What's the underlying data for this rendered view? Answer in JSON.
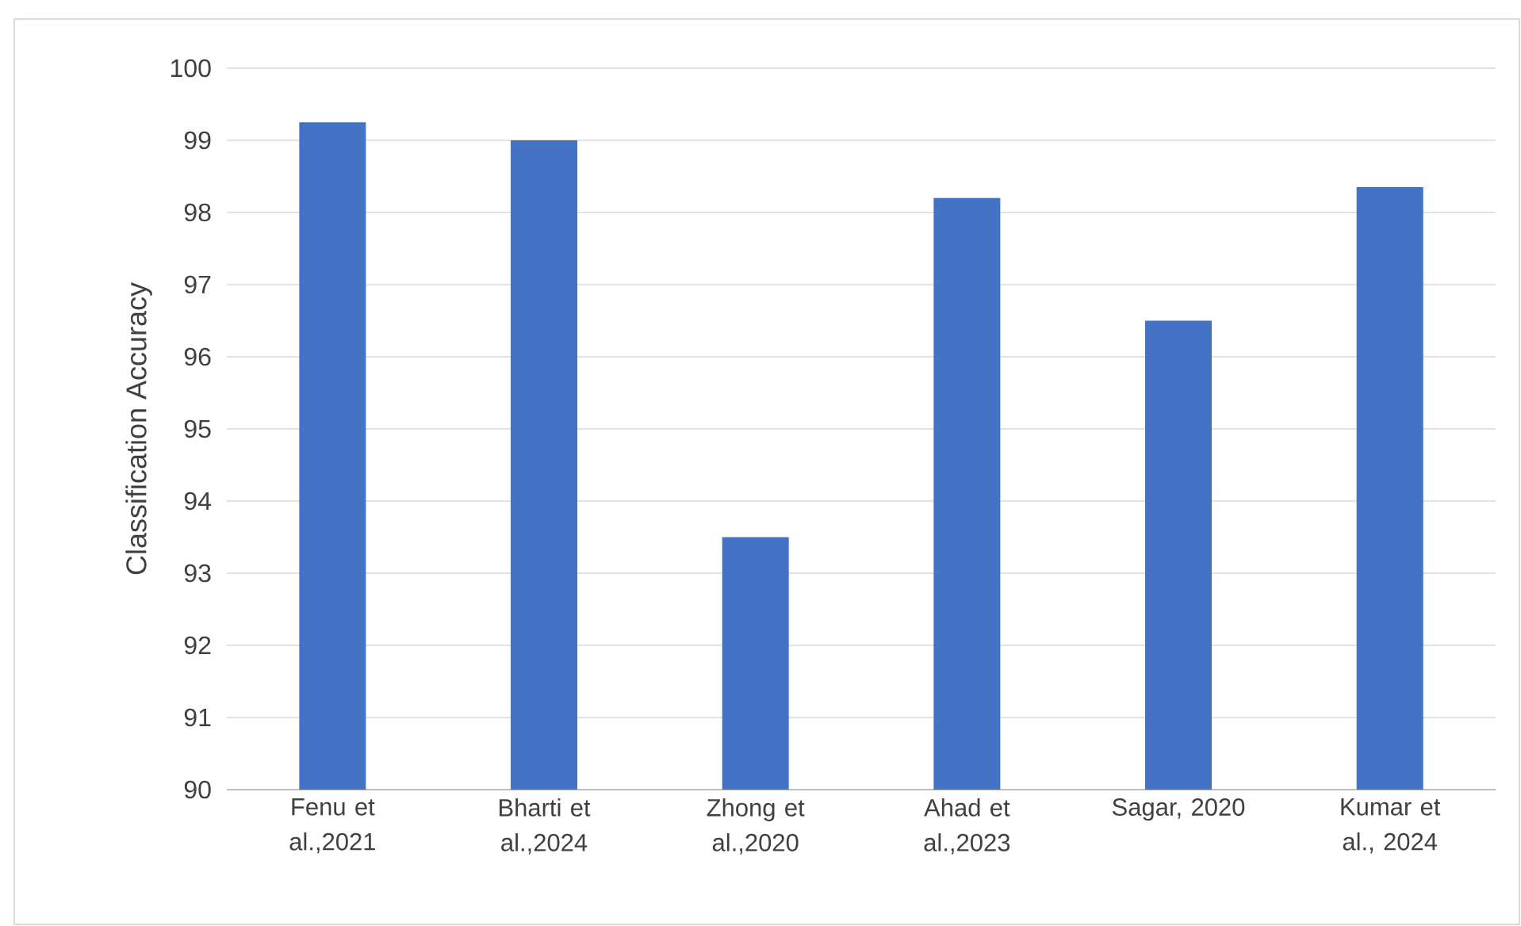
{
  "chart_data": {
    "type": "bar",
    "ylabel": "Classification Accuracy",
    "categories": [
      "Fenu et al.,2021",
      "Bharti et al.,2024",
      "Zhong et al.,2020",
      "Ahad et al.,2023",
      "Sagar, 2020",
      "Kumar et al., 2024"
    ],
    "values": [
      99.25,
      99.0,
      93.5,
      98.2,
      96.5,
      98.35
    ],
    "color": "#4472c4",
    "ylim": [
      90,
      100
    ],
    "yticks": [
      90,
      91,
      92,
      93,
      94,
      95,
      96,
      97,
      98,
      99,
      100
    ],
    "grid": "y"
  }
}
